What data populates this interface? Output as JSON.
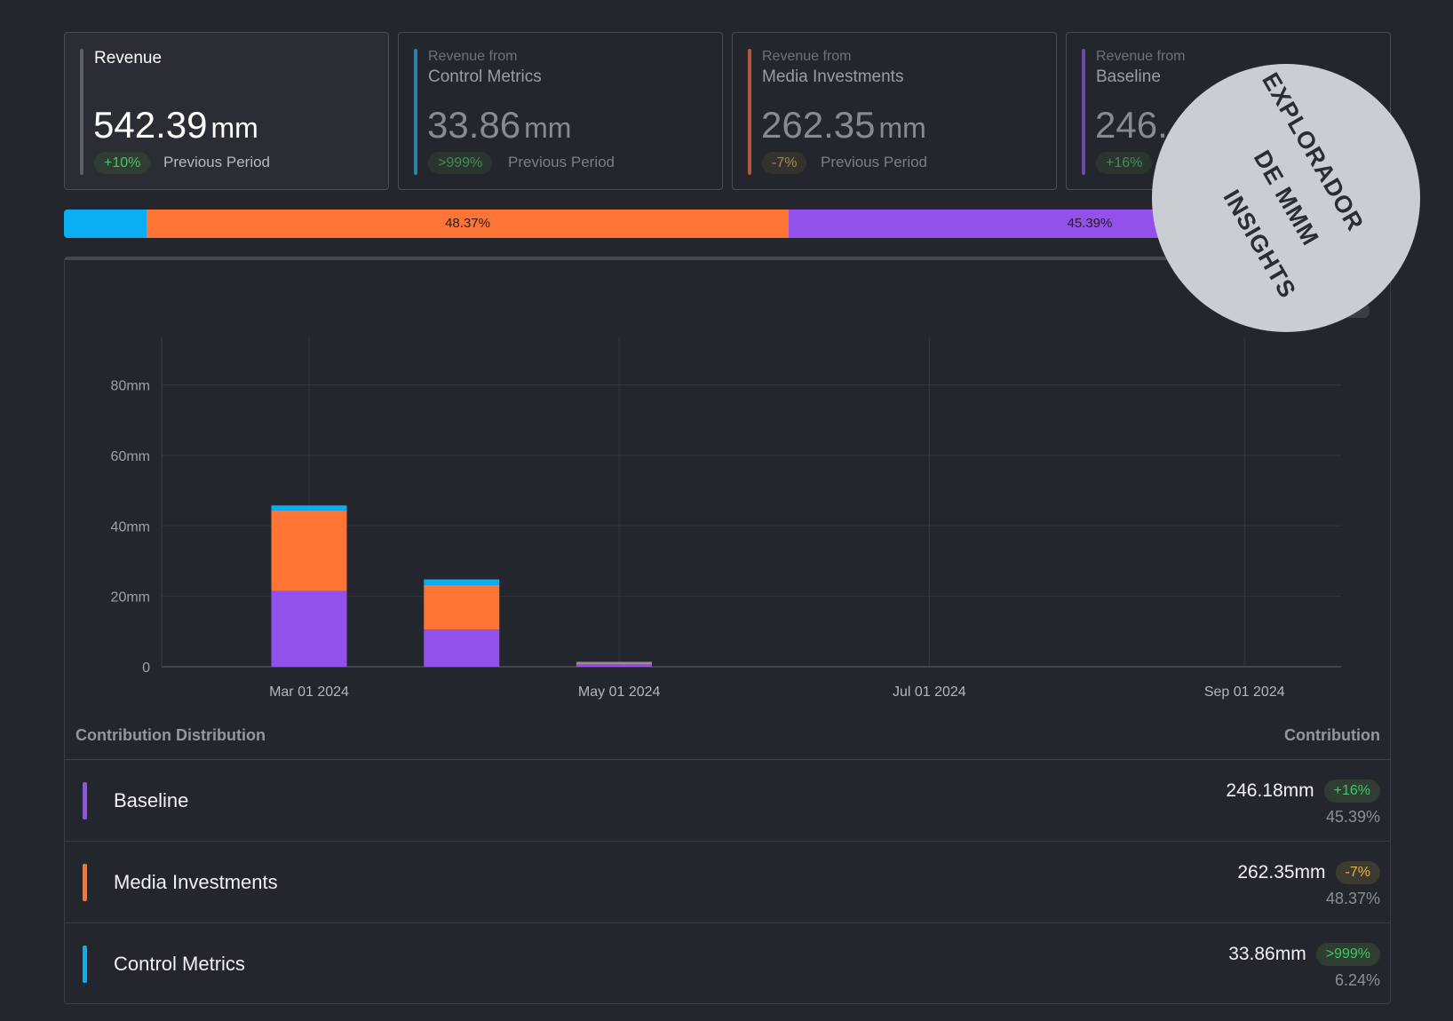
{
  "colors": {
    "control": "#0aaef5",
    "media": "#fd7435",
    "baseline": "#9151ea",
    "revenue": "#5c5f67",
    "control_accent": "#2f7fab",
    "media_accent": "#b65a35",
    "baseline_accent": "#6b4aa8"
  },
  "cards": [
    {
      "prefix": "",
      "name": "Revenue",
      "value": "542.39",
      "unit": "mm",
      "change": "+10%",
      "compare": "Previous Period"
    },
    {
      "prefix": "Revenue from",
      "name": "Control Metrics",
      "value": "33.86",
      "unit": "mm",
      "change": ">999%",
      "compare": "Previous Period"
    },
    {
      "prefix": "Revenue from",
      "name": "Media Investments",
      "value": "262.35",
      "unit": "mm",
      "change": "-7%",
      "compare": "Previous Period"
    },
    {
      "prefix": "Revenue from",
      "name": "Baseline",
      "value": "246.",
      "unit": "",
      "change": "+16%",
      "compare": ""
    }
  ],
  "share_bar": [
    {
      "key": "control",
      "fraction": 0.0624,
      "label": ""
    },
    {
      "key": "media",
      "fraction": 0.4837,
      "label": "48.37%"
    },
    {
      "key": "baseline",
      "fraction": 0.4539,
      "label": "45.39%"
    }
  ],
  "chart_data": {
    "type": "bar",
    "stacked": true,
    "x_ticks": [
      "Mar 01 2024",
      "May 01 2024",
      "Jul 01 2024",
      "Sep 01 2024"
    ],
    "y_ticks": [
      "0",
      "20mm",
      "40mm",
      "60mm",
      "80mm"
    ],
    "y_values_of_ticks": [
      0,
      20,
      40,
      60,
      80
    ],
    "ylim": [
      0,
      92
    ],
    "x_domain": [
      "2024-02-01",
      "2024-09-20"
    ],
    "x_tick_dates": [
      "2024-03-01",
      "2024-05-01",
      "2024-07-01",
      "2024-09-01"
    ],
    "bars": [
      {
        "date": "2024-03-01",
        "baseline": 21.5,
        "media": 22.9,
        "control": 1.4
      },
      {
        "date": "2024-03-31",
        "baseline": 10.6,
        "media": 12.6,
        "control": 1.6
      },
      {
        "date": "2024-04-30",
        "baseline": 0.7,
        "media": 0.6,
        "control": 0.1
      }
    ],
    "grid": true,
    "legend": "none"
  },
  "distribution": {
    "title": "Contribution Distribution",
    "column": "Contribution",
    "rows": [
      {
        "key": "baseline",
        "name": "Baseline",
        "value": "246.18mm",
        "change": "+16%",
        "pct": "45.39%"
      },
      {
        "key": "media",
        "name": "Media Investments",
        "value": "262.35mm",
        "change": "-7%",
        "pct": "48.37%"
      },
      {
        "key": "control",
        "name": "Control Metrics",
        "value": "33.86mm",
        "change": ">999%",
        "pct": "6.24%"
      }
    ]
  },
  "stamp": {
    "lines": [
      "EXPLORADOR",
      "DE MMM",
      "INSIGHTS"
    ]
  }
}
